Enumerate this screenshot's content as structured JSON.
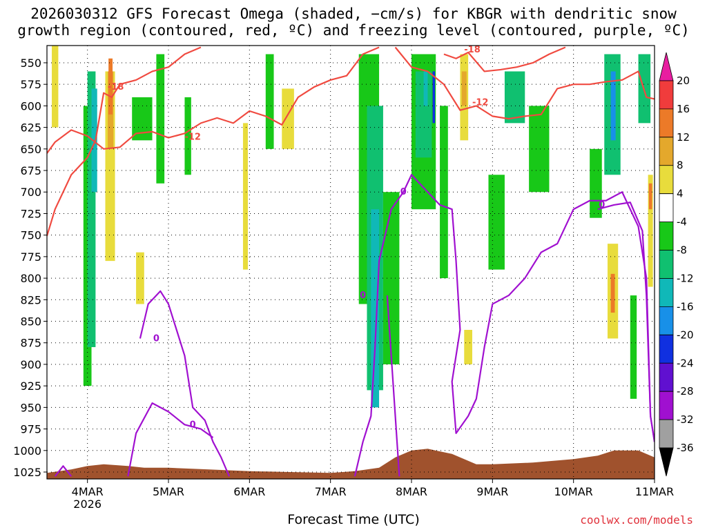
{
  "title": {
    "line1": "2026030312 GFS Forecast Omega (shaded, −cm/s) for KBGR with dendritic snow",
    "line2": "growth region (contoured, red, ºC) and freezing level (contoured, purple, ºC)"
  },
  "footer": {
    "credit": "coolwx.com/models"
  },
  "colors": {
    "dgz_contour": "#f04a40",
    "freezing_contour": "#a010d0",
    "terrain": "#a0522d"
  },
  "chart_data": {
    "type": "heatmap",
    "xlabel": "Forecast Time (UTC)",
    "ylabel": "",
    "x_ticks": [
      {
        "label": "4MAR",
        "sub": "2026",
        "day": 4
      },
      {
        "label": "5MAR",
        "sub": "",
        "day": 5
      },
      {
        "label": "6MAR",
        "sub": "",
        "day": 6
      },
      {
        "label": "7MAR",
        "sub": "",
        "day": 7
      },
      {
        "label": "8MAR",
        "sub": "",
        "day": 8
      },
      {
        "label": "9MAR",
        "sub": "",
        "day": 9
      },
      {
        "label": "10MAR",
        "sub": "",
        "day": 10
      },
      {
        "label": "11MAR",
        "sub": "",
        "day": 11
      }
    ],
    "xlim": [
      3.5,
      11.0
    ],
    "y_ticks": [
      550,
      575,
      600,
      625,
      650,
      675,
      700,
      725,
      750,
      775,
      800,
      825,
      850,
      875,
      900,
      925,
      950,
      975,
      1000,
      1025
    ],
    "ylim": [
      1033,
      530
    ],
    "grid": true,
    "colorbar": {
      "labels": [
        20,
        16,
        12,
        8,
        4,
        -4,
        -8,
        -12,
        -16,
        -20,
        -24,
        -28,
        -32,
        -36
      ],
      "bands": [
        {
          "color": "#e81ea0"
        },
        {
          "color": "#f03c3c"
        },
        {
          "color": "#ec7a28"
        },
        {
          "color": "#e4a82c"
        },
        {
          "color": "#e8dc3c"
        },
        {
          "color": "#ffffff"
        },
        {
          "color": "#18c818"
        },
        {
          "color": "#10c070"
        },
        {
          "color": "#10b8b8"
        },
        {
          "color": "#1890e8"
        },
        {
          "color": "#1030e0"
        },
        {
          "color": "#6010d0"
        },
        {
          "color": "#a010d0"
        },
        {
          "color": "#a0a0a0"
        },
        {
          "color": "#000000"
        }
      ]
    },
    "shading": [
      {
        "color": "#e8dc3c",
        "time": [
          3.56,
          3.64
        ],
        "p": [
          530,
          625
        ]
      },
      {
        "color": "#18c818",
        "time": [
          3.95,
          4.05
        ],
        "p": [
          600,
          925
        ]
      },
      {
        "color": "#10c070",
        "time": [
          4.0,
          4.1
        ],
        "p": [
          560,
          880
        ]
      },
      {
        "color": "#10b8b8",
        "time": [
          4.05,
          4.12
        ],
        "p": [
          580,
          700
        ]
      },
      {
        "color": "#e8dc3c",
        "time": [
          4.22,
          4.34
        ],
        "p": [
          560,
          780
        ]
      },
      {
        "color": "#e4a82c",
        "time": [
          4.25,
          4.32
        ],
        "p": [
          560,
          650
        ]
      },
      {
        "color": "#ec7a28",
        "time": [
          4.26,
          4.31
        ],
        "p": [
          545,
          610
        ]
      },
      {
        "color": "#18c818",
        "time": [
          4.55,
          4.8
        ],
        "p": [
          590,
          640
        ]
      },
      {
        "color": "#18c818",
        "time": [
          4.85,
          4.95
        ],
        "p": [
          540,
          690
        ]
      },
      {
        "color": "#e8dc3c",
        "time": [
          4.6,
          4.7
        ],
        "p": [
          770,
          830
        ]
      },
      {
        "color": "#18c818",
        "time": [
          5.2,
          5.28
        ],
        "p": [
          590,
          680
        ]
      },
      {
        "color": "#e8dc3c",
        "time": [
          5.92,
          5.98
        ],
        "p": [
          620,
          790
        ]
      },
      {
        "color": "#18c818",
        "time": [
          6.2,
          6.3
        ],
        "p": [
          540,
          650
        ]
      },
      {
        "color": "#e8dc3c",
        "time": [
          6.4,
          6.55
        ],
        "p": [
          580,
          650
        ]
      },
      {
        "color": "#18c818",
        "time": [
          7.35,
          7.6
        ],
        "p": [
          540,
          830
        ]
      },
      {
        "color": "#10c070",
        "time": [
          7.45,
          7.65
        ],
        "p": [
          600,
          930
        ]
      },
      {
        "color": "#10b8b8",
        "time": [
          7.5,
          7.6
        ],
        "p": [
          720,
          950
        ]
      },
      {
        "color": "#18c818",
        "time": [
          7.65,
          7.85
        ],
        "p": [
          700,
          900
        ]
      },
      {
        "color": "#18c818",
        "time": [
          8.0,
          8.3
        ],
        "p": [
          540,
          720
        ]
      },
      {
        "color": "#10c070",
        "time": [
          8.05,
          8.25
        ],
        "p": [
          560,
          660
        ]
      },
      {
        "color": "#10b8b8",
        "time": [
          8.15,
          8.2
        ],
        "p": [
          560,
          600
        ]
      },
      {
        "color": "#1030e0",
        "time": [
          8.26,
          8.29
        ],
        "p": [
          560,
          620
        ]
      },
      {
        "color": "#18c818",
        "time": [
          8.35,
          8.45
        ],
        "p": [
          600,
          800
        ]
      },
      {
        "color": "#e8dc3c",
        "time": [
          8.6,
          8.7
        ],
        "p": [
          540,
          640
        ]
      },
      {
        "color": "#e4a82c",
        "time": [
          8.62,
          8.68
        ],
        "p": [
          560,
          600
        ]
      },
      {
        "color": "#e8dc3c",
        "time": [
          8.65,
          8.75
        ],
        "p": [
          860,
          900
        ]
      },
      {
        "color": "#10c070",
        "time": [
          9.15,
          9.4
        ],
        "p": [
          560,
          620
        ]
      },
      {
        "color": "#18c818",
        "time": [
          8.95,
          9.15
        ],
        "p": [
          680,
          790
        ]
      },
      {
        "color": "#18c818",
        "time": [
          9.45,
          9.7
        ],
        "p": [
          600,
          700
        ]
      },
      {
        "color": "#18c818",
        "time": [
          10.2,
          10.35
        ],
        "p": [
          650,
          730
        ]
      },
      {
        "color": "#10c070",
        "time": [
          10.38,
          10.58
        ],
        "p": [
          540,
          680
        ]
      },
      {
        "color": "#1890e8",
        "time": [
          10.46,
          10.52
        ],
        "p": [
          560,
          640
        ]
      },
      {
        "color": "#e8dc3c",
        "time": [
          10.42,
          10.55
        ],
        "p": [
          760,
          870
        ]
      },
      {
        "color": "#ec7a28",
        "time": [
          10.46,
          10.51
        ],
        "p": [
          795,
          840
        ]
      },
      {
        "color": "#18c818",
        "time": [
          10.7,
          10.78
        ],
        "p": [
          820,
          940
        ]
      },
      {
        "color": "#10c070",
        "time": [
          10.8,
          10.95
        ],
        "p": [
          540,
          620
        ]
      },
      {
        "color": "#e8dc3c",
        "time": [
          10.92,
          10.98
        ],
        "p": [
          680,
          810
        ]
      },
      {
        "color": "#ec7a28",
        "time": [
          10.93,
          10.97
        ],
        "p": [
          690,
          720
        ]
      }
    ],
    "dgz_contours": [
      {
        "label": "-12",
        "label_at": [
          5.3,
          636
        ],
        "points": [
          [
            3.5,
            655
          ],
          [
            3.6,
            642
          ],
          [
            3.8,
            628
          ],
          [
            4.0,
            635
          ],
          [
            4.2,
            650
          ],
          [
            4.4,
            648
          ],
          [
            4.6,
            632
          ],
          [
            4.8,
            630
          ],
          [
            5.0,
            637
          ],
          [
            5.2,
            632
          ],
          [
            5.4,
            620
          ],
          [
            5.6,
            614
          ],
          [
            5.8,
            620
          ],
          [
            6.0,
            606
          ],
          [
            6.2,
            612
          ],
          [
            6.4,
            622
          ],
          [
            6.6,
            590
          ],
          [
            6.8,
            578
          ],
          [
            7.0,
            570
          ],
          [
            7.2,
            565
          ],
          [
            7.4,
            540
          ],
          [
            7.6,
            532
          ]
        ]
      },
      {
        "label": "-18",
        "label_at": [
          4.35,
          578
        ],
        "points": [
          [
            3.5,
            751
          ],
          [
            3.6,
            720
          ],
          [
            3.8,
            680
          ],
          [
            4.0,
            660
          ],
          [
            4.1,
            640
          ],
          [
            4.2,
            585
          ],
          [
            4.3,
            590
          ],
          [
            4.4,
            575
          ],
          [
            4.6,
            570
          ],
          [
            4.8,
            560
          ],
          [
            5.0,
            555
          ],
          [
            5.2,
            540
          ],
          [
            5.4,
            532
          ]
        ]
      },
      {
        "label": "-18",
        "label_at": [
          8.75,
          535
        ],
        "points": [
          [
            8.4,
            540
          ],
          [
            8.55,
            545
          ],
          [
            8.7,
            538
          ],
          [
            8.9,
            560
          ],
          [
            9.1,
            558
          ],
          [
            9.3,
            555
          ],
          [
            9.5,
            550
          ],
          [
            9.7,
            540
          ],
          [
            9.9,
            532
          ]
        ]
      },
      {
        "label": "-12",
        "label_at": [
          8.85,
          596
        ],
        "points": [
          [
            7.8,
            532
          ],
          [
            8.0,
            555
          ],
          [
            8.2,
            560
          ],
          [
            8.4,
            575
          ],
          [
            8.6,
            605
          ],
          [
            8.8,
            600
          ],
          [
            9.0,
            612
          ],
          [
            9.2,
            615
          ],
          [
            9.4,
            612
          ],
          [
            9.6,
            610
          ],
          [
            9.8,
            580
          ],
          [
            10.0,
            575
          ],
          [
            10.2,
            575
          ],
          [
            10.4,
            572
          ],
          [
            10.6,
            570
          ],
          [
            10.8,
            560
          ],
          [
            10.9,
            590
          ],
          [
            11.0,
            592
          ]
        ]
      }
    ],
    "freezing_contours": [
      {
        "label": "0",
        "label_at": [
          4.85,
          870
        ],
        "points": [
          [
            4.65,
            870
          ],
          [
            4.75,
            830
          ],
          [
            4.9,
            815
          ],
          [
            5.0,
            830
          ],
          [
            5.1,
            860
          ],
          [
            5.2,
            890
          ],
          [
            5.3,
            950
          ],
          [
            5.45,
            965
          ],
          [
            5.55,
            990
          ],
          [
            5.65,
            1008
          ],
          [
            5.75,
            1030
          ]
        ]
      },
      {
        "label": "0",
        "label_at": [
          5.3,
          970
        ],
        "points": [
          [
            4.5,
            1030
          ],
          [
            4.6,
            980
          ],
          [
            4.8,
            945
          ],
          [
            5.0,
            955
          ],
          [
            5.2,
            970
          ],
          [
            5.4,
            975
          ],
          [
            5.55,
            985
          ]
        ]
      },
      {
        "label": "0",
        "label_at": [
          7.4,
          820
        ],
        "points": [
          [
            7.3,
            1030
          ],
          [
            7.4,
            990
          ],
          [
            7.5,
            960
          ],
          [
            7.55,
            880
          ],
          [
            7.6,
            780
          ],
          [
            7.75,
            720
          ],
          [
            7.9,
            700
          ],
          [
            8.0,
            680
          ],
          [
            8.2,
            700
          ],
          [
            8.35,
            715
          ],
          [
            8.5,
            720
          ],
          [
            8.55,
            780
          ],
          [
            8.6,
            860
          ],
          [
            8.5,
            920
          ],
          [
            8.55,
            980
          ],
          [
            8.7,
            960
          ],
          [
            8.8,
            940
          ],
          [
            8.9,
            880
          ],
          [
            9.0,
            830
          ],
          [
            9.2,
            820
          ],
          [
            9.4,
            800
          ],
          [
            9.6,
            770
          ],
          [
            9.8,
            760
          ],
          [
            10.0,
            720
          ],
          [
            10.2,
            710
          ],
          [
            10.4,
            710
          ],
          [
            10.6,
            700
          ],
          [
            10.8,
            740
          ],
          [
            10.9,
            800
          ],
          [
            10.95,
            960
          ],
          [
            11.0,
            990
          ]
        ]
      },
      {
        "label": "0",
        "label_at": [
          7.9,
          700
        ],
        "points": [
          [
            7.85,
            1030
          ],
          [
            7.8,
            960
          ],
          [
            7.75,
            890
          ],
          [
            7.7,
            820
          ]
        ]
      },
      {
        "label": "0",
        "label_at": [
          10.35,
          715
        ],
        "points": [
          [
            10.3,
            720
          ],
          [
            10.5,
            715
          ],
          [
            10.7,
            712
          ],
          [
            10.85,
            745
          ],
          [
            10.9,
            820
          ],
          [
            10.95,
            960
          ],
          [
            11.0,
            990
          ]
        ]
      },
      {
        "label": "",
        "label_at": [
          3.7,
          1025
        ],
        "points": [
          [
            3.6,
            1030
          ],
          [
            3.7,
            1018
          ],
          [
            3.8,
            1030
          ]
        ]
      }
    ],
    "terrain_top": [
      [
        3.5,
        1026
      ],
      [
        3.8,
        1022
      ],
      [
        4.0,
        1018
      ],
      [
        4.2,
        1016
      ],
      [
        4.5,
        1018
      ],
      [
        4.7,
        1020
      ],
      [
        5.0,
        1020
      ],
      [
        5.5,
        1022
      ],
      [
        6.0,
        1024
      ],
      [
        6.5,
        1025
      ],
      [
        7.0,
        1026
      ],
      [
        7.3,
        1024
      ],
      [
        7.6,
        1020
      ],
      [
        7.8,
        1008
      ],
      [
        8.0,
        1000
      ],
      [
        8.2,
        998
      ],
      [
        8.5,
        1004
      ],
      [
        8.8,
        1016
      ],
      [
        9.0,
        1016
      ],
      [
        9.5,
        1014
      ],
      [
        10.0,
        1010
      ],
      [
        10.3,
        1006
      ],
      [
        10.5,
        1000
      ],
      [
        10.8,
        1000
      ],
      [
        11.0,
        1008
      ]
    ]
  }
}
